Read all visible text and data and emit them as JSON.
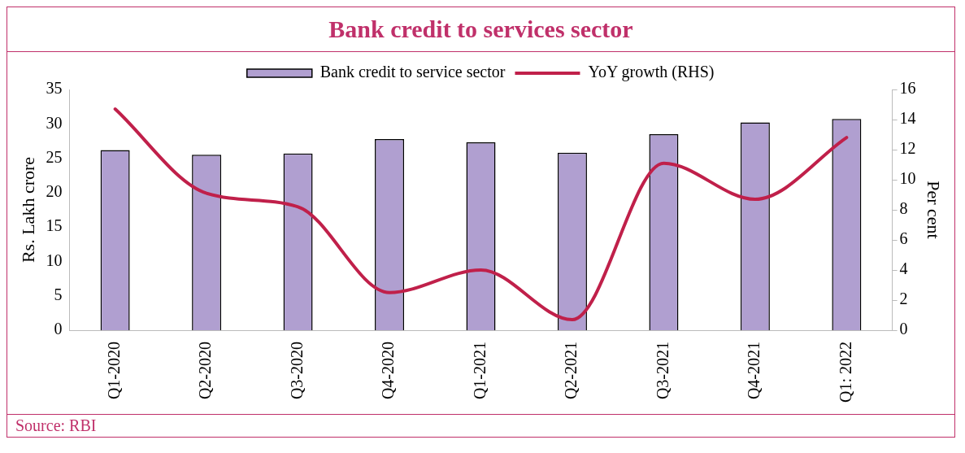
{
  "chart_data": {
    "type": "bar",
    "title": "Bank credit to services sector",
    "ylabel": "Rs. Lakh crore",
    "y2label": "Per cent",
    "categories": [
      "Q1-2020",
      "Q2-2020",
      "Q3-2020",
      "Q4-2020",
      "Q1-2021",
      "Q2-2021",
      "Q3-2021",
      "Q4-2021",
      "Q1: 2022"
    ],
    "series": [
      {
        "name": "Bank credit to service sector",
        "color": "#b09fd0",
        "values": [
          26.2,
          25.5,
          25.7,
          27.8,
          27.3,
          25.8,
          28.5,
          30.2,
          30.7
        ]
      },
      {
        "name": "YoY growth (RHS)",
        "type": "line",
        "axis": "y2",
        "color": "#c0204a",
        "values": [
          14.7,
          9.1,
          8.2,
          2.5,
          4.0,
          0.7,
          11.1,
          8.7,
          12.8
        ]
      }
    ],
    "ylim": [
      0,
      35
    ],
    "yticks": [
      0,
      5,
      10,
      15,
      20,
      25,
      30,
      35
    ],
    "y2lim": [
      0,
      16
    ],
    "y2ticks": [
      0,
      2,
      4,
      6,
      8,
      10,
      12,
      14,
      16
    ],
    "grid": false,
    "legend": "top",
    "annotations": [
      "Source: RBI"
    ]
  }
}
